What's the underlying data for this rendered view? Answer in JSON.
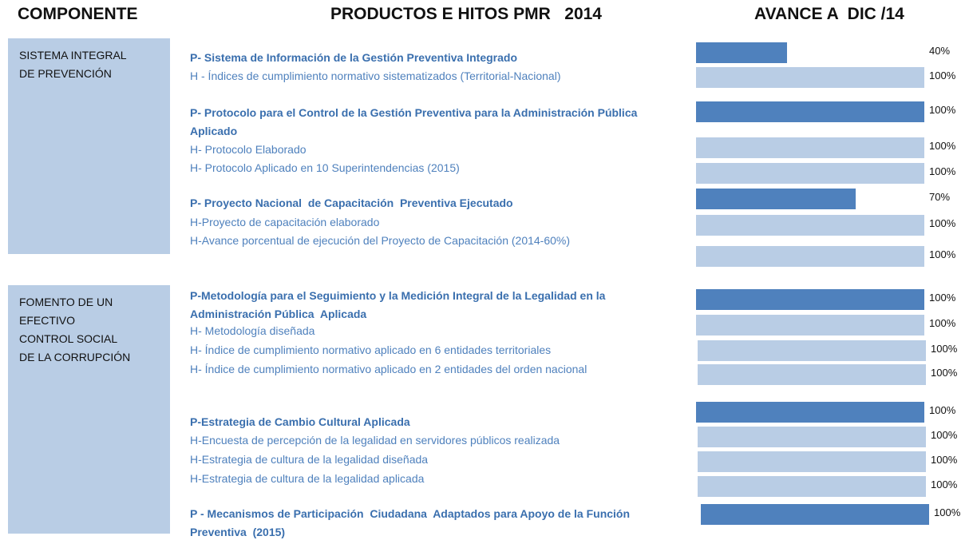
{
  "headers": {
    "componente": "COMPONENTE",
    "productos": "PRODUCTOS E HITOS PMR   2014",
    "avance": "AVANCE A  DIC /14"
  },
  "components": [
    {
      "name": "SISTEMA  INTEGRAL DE PREVENCIÓN",
      "items": [
        {
          "text": "P- Sistema de Información de la Gestión Preventiva Integrado",
          "value": 40,
          "label": "40%"
        },
        {
          "text": "H - Índices de cumplimiento normativo sistematizados (Territorial-Nacional)",
          "value": 100,
          "label": "100%"
        },
        {
          "text": "P- Protocolo para el Control de la Gestión Preventiva para la Administración Pública Aplicado",
          "value": 100,
          "label": "100%"
        },
        {
          "text": "H- Protocolo Elaborado",
          "value": 100,
          "label": "100%"
        },
        {
          "text": "H- Protocolo Aplicado en 10 Superintendencias (2015)",
          "value": 100,
          "label": "100%"
        },
        {
          "text": "P- Proyecto Nacional  de Capacitación  Preventiva Ejecutado",
          "value": 70,
          "label": "70%"
        },
        {
          "text": "H-Proyecto de capacitación elaborado",
          "value": 100,
          "label": "100%"
        },
        {
          "text": "H-Avance porcentual de ejecución del Proyecto de Capacitación (2014-60%)",
          "value": 100,
          "label": "100%"
        }
      ]
    },
    {
      "name": "FOMENTO  DE UN EFECTIVO CONTROL  SOCIAL DE LA CORRUPCIÓN",
      "items": [
        {
          "text": "P-Metodología para el Seguimiento y la Medición Integral de la Legalidad en la Administración Pública  Aplicada",
          "value": 100,
          "label": "100%"
        },
        {
          "text": "H- Metodología diseñada",
          "value": 100,
          "label": "100%"
        },
        {
          "text": "H- Índice de cumplimiento normativo aplicado en 6 entidades territoriales",
          "value": 100,
          "label": "100%"
        },
        {
          "text": "H- Índice de cumplimiento normativo aplicado en 2 entidades del orden nacional",
          "value": 100,
          "label": "100%"
        },
        {
          "text": "P-Estrategia de Cambio Cultural Aplicada",
          "value": 100,
          "label": "100%"
        },
        {
          "text": "H-Encuesta de percepción de la legalidad en servidores públicos realizada",
          "value": 100,
          "label": "100%"
        },
        {
          "text": "H-Estrategia de cultura de la legalidad diseñada",
          "value": 100,
          "label": "100%"
        },
        {
          "text": "H-Estrategia de cultura de la legalidad aplicada",
          "value": 100,
          "label": "100%"
        },
        {
          "text": "P - Mecanismos de Participación  Ciudadana  Adaptados para Apoyo de la Función  Preventiva  (2015)",
          "value": 100,
          "label": "100%"
        }
      ]
    }
  ]
}
